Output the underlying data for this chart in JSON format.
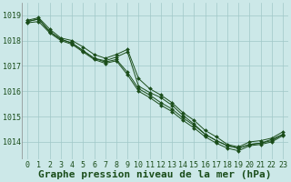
{
  "title": "Graphe pression niveau de la mer (hPa)",
  "yticks": [
    1014,
    1015,
    1016,
    1017,
    1018,
    1019
  ],
  "ylim": [
    1013.3,
    1019.5
  ],
  "xlim": [
    -0.5,
    23.5
  ],
  "background_color": "#cce8e8",
  "grid_color": "#b0d0d0",
  "line_color": "#1a4d1a",
  "series": [
    [
      1018.8,
      1018.9,
      1018.45,
      1018.1,
      1018.0,
      1017.75,
      1017.45,
      1017.3,
      1017.45,
      1017.65,
      1016.5,
      1016.1,
      1015.85,
      1015.55,
      1015.15,
      1014.85,
      1014.45,
      1014.2,
      1013.9,
      1013.8,
      1014.0,
      1014.05,
      1014.15,
      1014.4
    ],
    [
      1018.75,
      1018.85,
      1018.35,
      1018.05,
      1017.9,
      1017.6,
      1017.3,
      1017.2,
      1017.35,
      1017.55,
      1016.2,
      1015.95,
      1015.75,
      1015.45,
      1015.05,
      1014.7,
      1014.3,
      1014.05,
      1013.85,
      1013.75,
      1013.9,
      1013.95,
      1014.1,
      1014.3
    ],
    [
      1018.75,
      1018.85,
      1018.35,
      1018.05,
      1017.9,
      1017.6,
      1017.3,
      1017.15,
      1017.25,
      1016.75,
      1016.1,
      1015.85,
      1015.55,
      1015.3,
      1014.95,
      1014.65,
      1014.3,
      1014.05,
      1013.85,
      1013.75,
      1013.9,
      1013.95,
      1014.05,
      1014.3
    ],
    [
      1018.7,
      1018.75,
      1018.3,
      1018.0,
      1017.85,
      1017.55,
      1017.25,
      1017.1,
      1017.2,
      1016.65,
      1016.0,
      1015.75,
      1015.45,
      1015.2,
      1014.85,
      1014.55,
      1014.2,
      1013.95,
      1013.75,
      1013.65,
      1013.85,
      1013.9,
      1014.0,
      1014.25
    ]
  ],
  "title_fontsize": 8,
  "tick_fontsize": 6,
  "title_color": "#1a4d1a",
  "tick_color": "#1a4d1a",
  "xlabel_ticks": [
    "0",
    "1",
    "2",
    "3",
    "4",
    "5",
    "6",
    "7",
    "8",
    "9",
    "10",
    "11",
    "12",
    "13",
    "14",
    "15",
    "16",
    "17",
    "18",
    "19",
    "20",
    "21",
    "22",
    "23"
  ]
}
